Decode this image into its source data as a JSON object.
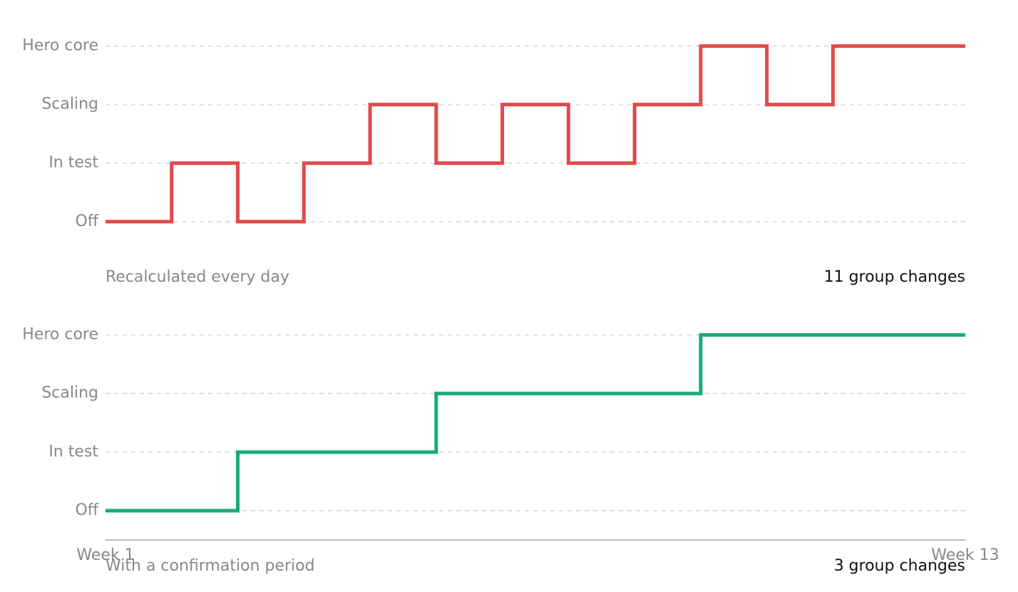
{
  "chart_data": [
    {
      "type": "line",
      "step": "post",
      "title": "Recalculated every day",
      "annotation": "11 group changes",
      "x": [
        0,
        1,
        2,
        3,
        4,
        5,
        6,
        7,
        8,
        9,
        10,
        11,
        12,
        13
      ],
      "values": [
        0,
        1,
        0,
        1,
        2,
        1,
        2,
        1,
        2,
        3,
        2,
        3,
        3,
        3
      ],
      "color": "#e04b4b",
      "xlim": [
        0,
        13
      ],
      "ylim": [
        -0.6,
        3.3
      ],
      "yticks": [
        {
          "value": 0,
          "label": "Off"
        },
        {
          "value": 1,
          "label": "In test"
        },
        {
          "value": 2,
          "label": "Scaling"
        },
        {
          "value": 3,
          "label": "Hero core"
        }
      ],
      "grid": true
    },
    {
      "type": "line",
      "step": "post",
      "title": "With a confirmation period",
      "annotation": "3 group changes",
      "x": [
        0,
        1,
        2,
        3,
        4,
        5,
        6,
        7,
        8,
        9,
        10,
        11,
        12,
        13
      ],
      "values": [
        0,
        0,
        1,
        1,
        1,
        2,
        2,
        2,
        2,
        3,
        3,
        3,
        3,
        3
      ],
      "color": "#1aa97a",
      "xlim": [
        0,
        13
      ],
      "ylim": [
        -0.5,
        3.3
      ],
      "xticks": [
        {
          "value": 0,
          "label": "Week 1"
        },
        {
          "value": 13,
          "label": "Week 13"
        }
      ],
      "yticks": [
        {
          "value": 0,
          "label": "Off"
        },
        {
          "value": 1,
          "label": "In test"
        },
        {
          "value": 2,
          "label": "Scaling"
        },
        {
          "value": 3,
          "label": "Hero core"
        }
      ],
      "grid": true
    }
  ]
}
